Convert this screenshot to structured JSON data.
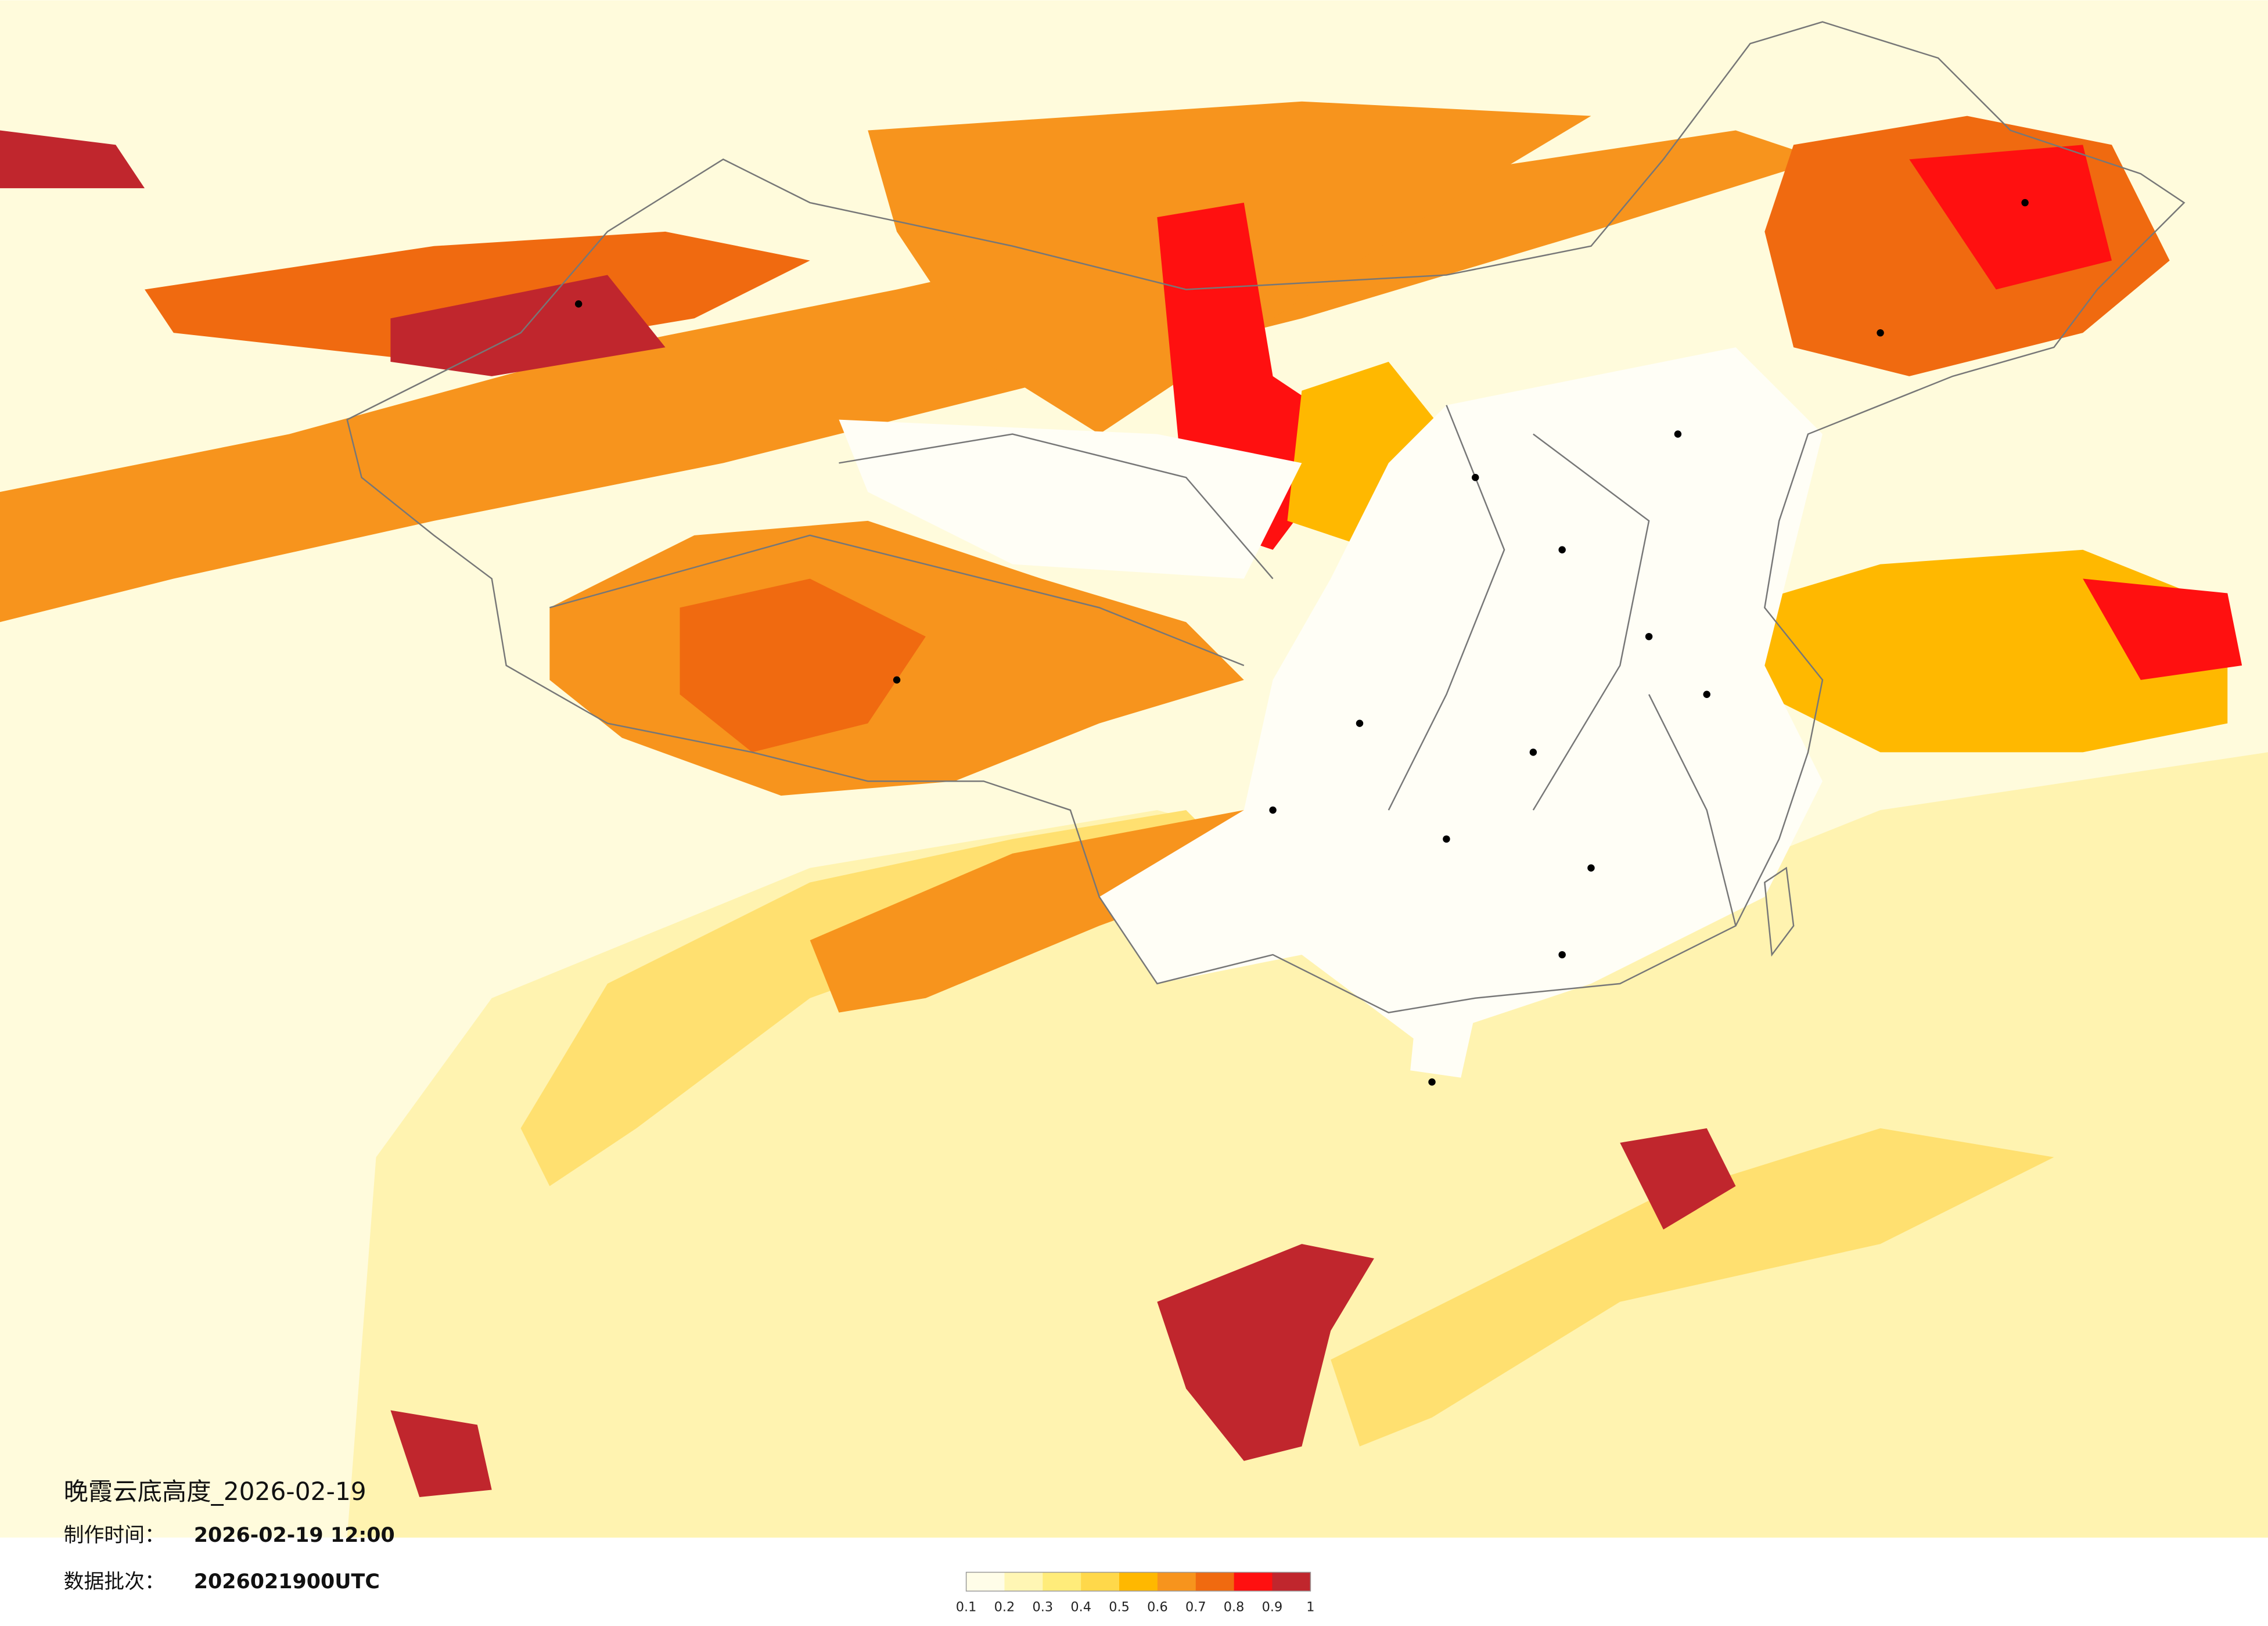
{
  "title": "晚霞云底高度_2026-02-19",
  "made_time": {
    "label": "制作时间：",
    "value": "2026-02-19 12:00"
  },
  "data_batch": {
    "label": "数据批次：",
    "value": "2026021900UTC"
  },
  "legend": {
    "ticks": [
      0.1,
      0.2,
      0.3,
      0.4,
      0.5,
      0.6,
      0.7,
      0.8,
      0.9,
      1
    ],
    "colors": [
      "#fffde8",
      "#fff6b4",
      "#ffec7a",
      "#ffd84a",
      "#ffb800",
      "#f7941d",
      "#f06a10",
      "#ff1010",
      "#c0262d"
    ]
  }
}
